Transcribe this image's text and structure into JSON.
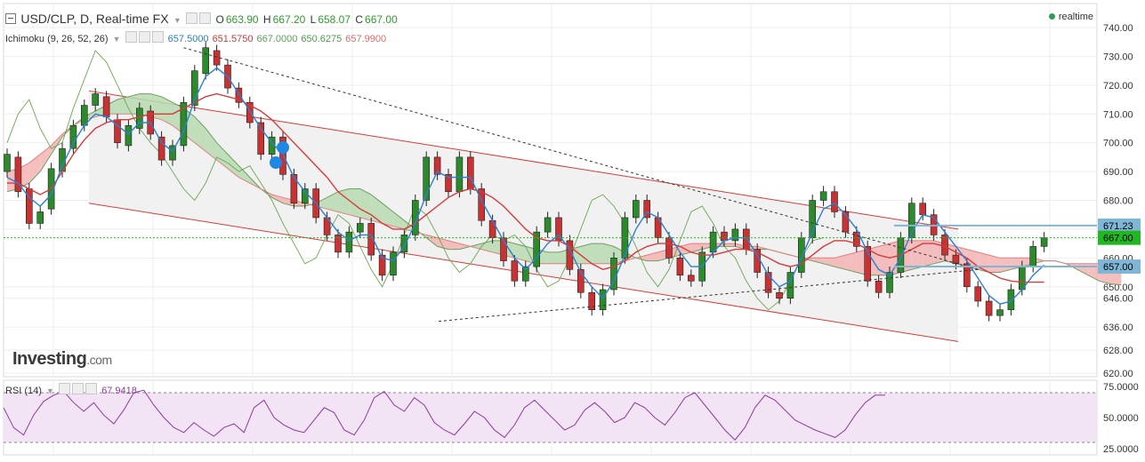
{
  "header": {
    "title": "USD/CLP, D, Real-time FX",
    "ohlc": [
      {
        "label": "O",
        "value": "663.90"
      },
      {
        "label": "H",
        "value": "667.20"
      },
      {
        "label": "L",
        "value": "658.07"
      },
      {
        "label": "C",
        "value": "667.00"
      }
    ],
    "realtime": "realtime"
  },
  "ichimoku": {
    "label": "Ichimoku (9, 26, 52, 26)",
    "values": [
      {
        "value": "657.5000",
        "color": "#2a7fd4"
      },
      {
        "value": "651.5750",
        "color": "#d63a3a"
      },
      {
        "value": "667.0000",
        "color": "#5aa05a"
      },
      {
        "value": "650.6275",
        "color": "#4f9a4f"
      },
      {
        "value": "657.9900",
        "color": "#e06a6a"
      }
    ]
  },
  "rsi": {
    "label": "RSI (14)",
    "value": "67.9418",
    "ticks": [
      "75.0000",
      "50.0000",
      "25.0000"
    ]
  },
  "logo": {
    "main": "Investing",
    "suffix": ".com"
  },
  "price_labels": [
    {
      "value": "671.23",
      "price": 671.23,
      "color": "#7fb6d6",
      "text_color": "#000000"
    },
    {
      "value": "667.00",
      "price": 667.0,
      "color": "#23b623",
      "text_color": "#000000"
    },
    {
      "value": "657.00",
      "price": 657.0,
      "color": "#7fb6d6",
      "text_color": "#000000"
    }
  ],
  "colors": {
    "up": "#2b8a2b",
    "down": "#c83232",
    "tenkan": "#2a7fd4",
    "kijun": "#d63a3a",
    "chikou": "#6aa84f",
    "cloud_bull": "#b7dbb0",
    "cloud_bear": "#f4b4b4",
    "channel": "#d63a3a",
    "rsi_line": "#8b3a9b",
    "rsi_band": "#f3e4f5",
    "trend": "#333333"
  },
  "chart_data": {
    "type": "candlestick",
    "ylim": [
      620,
      745
    ],
    "yticks": [
      "740.00",
      "730.00",
      "720.00",
      "710.00",
      "700.00",
      "690.00",
      "680.00",
      "670.00",
      "660.00",
      "650.00",
      "646.00",
      "636.00",
      "628.00",
      "620.00"
    ],
    "rsi_range": [
      20,
      80
    ],
    "rsi_levels": [
      70,
      30
    ],
    "candles": [
      [
        690,
        696
      ],
      [
        695,
        683
      ],
      [
        684,
        672
      ],
      [
        672,
        676
      ],
      [
        677,
        691
      ],
      [
        690,
        698
      ],
      [
        698,
        706
      ],
      [
        706,
        713
      ],
      [
        713,
        717
      ],
      [
        716,
        709
      ],
      [
        708,
        700
      ],
      [
        699,
        706
      ],
      [
        705,
        712
      ],
      [
        711,
        703
      ],
      [
        702,
        694
      ],
      [
        694,
        699
      ],
      [
        699,
        714
      ],
      [
        713,
        725
      ],
      [
        724,
        733
      ],
      [
        732,
        727
      ],
      [
        727,
        719
      ],
      [
        719,
        714
      ],
      [
        714,
        707
      ],
      [
        707,
        696
      ],
      [
        696,
        702
      ],
      [
        702,
        689
      ],
      [
        689,
        679
      ],
      [
        679,
        684
      ],
      [
        684,
        674
      ],
      [
        674,
        668
      ],
      [
        668,
        662
      ],
      [
        662,
        669
      ],
      [
        669,
        672
      ],
      [
        672,
        661
      ],
      [
        661,
        654
      ],
      [
        654,
        662
      ],
      [
        662,
        668
      ],
      [
        668,
        680
      ],
      [
        680,
        695
      ],
      [
        695,
        689
      ],
      [
        689,
        683
      ],
      [
        683,
        695
      ],
      [
        695,
        684
      ],
      [
        684,
        673
      ],
      [
        673,
        667
      ],
      [
        667,
        659
      ],
      [
        659,
        652
      ],
      [
        652,
        657
      ],
      [
        657,
        669
      ],
      [
        669,
        674
      ],
      [
        674,
        666
      ],
      [
        666,
        656
      ],
      [
        656,
        648
      ],
      [
        648,
        642
      ],
      [
        642,
        649
      ],
      [
        649,
        660
      ],
      [
        660,
        674
      ],
      [
        674,
        680
      ],
      [
        680,
        674
      ],
      [
        674,
        667
      ],
      [
        667,
        660
      ],
      [
        660,
        654
      ],
      [
        654,
        652
      ],
      [
        652,
        662
      ],
      [
        662,
        669
      ],
      [
        669,
        666
      ],
      [
        666,
        670
      ],
      [
        670,
        663
      ],
      [
        663,
        655
      ],
      [
        655,
        648
      ],
      [
        648,
        646
      ],
      [
        646,
        655
      ],
      [
        655,
        667
      ],
      [
        667,
        680
      ],
      [
        680,
        683
      ],
      [
        683,
        676
      ],
      [
        676,
        669
      ],
      [
        669,
        664
      ],
      [
        664,
        652
      ],
      [
        652,
        648
      ],
      [
        648,
        655
      ],
      [
        655,
        667
      ],
      [
        667,
        679
      ],
      [
        679,
        675
      ],
      [
        675,
        668
      ],
      [
        668,
        661
      ],
      [
        661,
        658
      ],
      [
        658,
        650
      ],
      [
        650,
        645
      ],
      [
        645,
        640
      ],
      [
        640,
        642
      ],
      [
        642,
        649
      ],
      [
        649,
        657
      ],
      [
        657,
        664
      ],
      [
        664,
        667
      ]
    ],
    "tenkan": [
      688,
      686,
      681,
      678,
      682,
      692,
      700,
      706,
      710,
      709,
      706,
      703,
      707,
      707,
      700,
      697,
      704,
      715,
      723,
      726,
      723,
      717,
      711,
      705,
      700,
      696,
      688,
      683,
      679,
      674,
      669,
      666,
      668,
      668,
      660,
      659,
      664,
      672,
      682,
      690,
      688,
      688,
      688,
      680,
      673,
      666,
      660,
      656,
      660,
      665,
      668,
      663,
      655,
      650,
      646,
      652,
      661,
      670,
      676,
      674,
      668,
      662,
      657,
      657,
      662,
      666,
      667,
      667,
      661,
      654,
      650,
      652,
      660,
      669,
      677,
      679,
      675,
      670,
      662,
      656,
      654,
      660,
      669,
      675,
      674,
      669,
      664,
      659,
      653,
      647,
      644,
      645,
      649,
      654,
      657.5
    ],
    "kijun": [
      686,
      686,
      684,
      682,
      684,
      690,
      696,
      701,
      705,
      707,
      708,
      708,
      709,
      710,
      710,
      710,
      712,
      714,
      716,
      717,
      716,
      715,
      713,
      711,
      708,
      704,
      700,
      696,
      692,
      688,
      683,
      680,
      677,
      675,
      672,
      670,
      670,
      672,
      675,
      678,
      681,
      683,
      684,
      683,
      681,
      678,
      674,
      670,
      667,
      666,
      666,
      664,
      661,
      658,
      656,
      657,
      659,
      662,
      664,
      665,
      665,
      664,
      662,
      661,
      661,
      662,
      663,
      663,
      662,
      660,
      658,
      657,
      658,
      661,
      664,
      666,
      666,
      665,
      663,
      661,
      660,
      661,
      663,
      665,
      665,
      664,
      662,
      660,
      657,
      655,
      653,
      652,
      651.6,
      651.6,
      651.6
    ],
    "span_a": [
      683,
      684,
      686,
      690,
      696,
      702,
      706,
      709,
      711,
      713,
      715,
      716,
      717,
      717,
      716,
      714,
      712,
      709,
      705,
      700,
      696,
      692,
      688,
      684,
      681,
      679,
      678,
      678,
      679,
      681,
      683,
      684,
      684,
      682,
      679,
      676,
      673,
      670,
      667,
      664,
      663,
      663,
      664,
      665,
      666,
      666,
      665,
      664,
      663,
      662,
      662,
      663,
      664,
      665,
      665,
      664,
      662,
      660,
      659,
      659,
      660,
      661,
      662,
      663,
      664,
      664,
      664,
      663,
      663,
      663,
      662,
      661,
      660,
      659,
      658,
      657,
      656,
      655,
      654,
      654,
      654,
      655,
      656,
      657,
      658,
      659,
      658,
      657,
      656,
      655,
      655,
      656,
      657,
      658,
      659,
      659,
      658,
      656,
      654,
      652,
      651,
      650.6
    ],
    "span_b": [
      690,
      691,
      693,
      696,
      699,
      703,
      706,
      708,
      709,
      710,
      710,
      710,
      710,
      709,
      708,
      706,
      703,
      700,
      697,
      694,
      691,
      688,
      686,
      684,
      682,
      681,
      680,
      679,
      678,
      677,
      676,
      675,
      674,
      673,
      672,
      671,
      670,
      669,
      668,
      667,
      666,
      665,
      664,
      663,
      662,
      661,
      660,
      659,
      658,
      658,
      658,
      658,
      658,
      658,
      658,
      658,
      659,
      660,
      661,
      662,
      663,
      664,
      665,
      665,
      665,
      665,
      665,
      664,
      664,
      663,
      662,
      661,
      660,
      660,
      660,
      660,
      661,
      662,
      663,
      664,
      665,
      666,
      666,
      666,
      666,
      665,
      664,
      663,
      662,
      661,
      660,
      660,
      660,
      660,
      659,
      659,
      658,
      658,
      658,
      658,
      658,
      658
    ],
    "chikou": [
      700,
      710,
      715,
      705,
      698,
      700,
      712,
      722,
      732,
      728,
      720,
      712,
      705,
      700,
      696,
      690,
      684,
      680,
      686,
      695,
      693,
      690,
      692,
      686,
      680,
      672,
      665,
      658,
      660,
      668,
      675,
      672,
      664,
      656,
      650,
      658,
      668,
      678,
      675,
      668,
      660,
      655,
      658,
      664,
      668,
      666,
      668,
      664,
      656,
      650,
      652,
      660,
      670,
      680,
      682,
      678,
      672,
      664,
      655,
      650,
      656,
      666,
      676,
      678,
      672,
      664,
      660,
      652,
      646,
      642,
      645,
      652,
      660,
      666,
      667
    ],
    "rsi": [
      58,
      42,
      36,
      52,
      63,
      68,
      71,
      62,
      55,
      62,
      52,
      45,
      56,
      70,
      72,
      60,
      50,
      42,
      38,
      46,
      40,
      35,
      42,
      45,
      38,
      58,
      64,
      50,
      44,
      40,
      38,
      48,
      58,
      54,
      40,
      36,
      48,
      66,
      71,
      60,
      55,
      66,
      60,
      46,
      40,
      36,
      45,
      55,
      50,
      40,
      34,
      44,
      58,
      64,
      56,
      48,
      40,
      44,
      56,
      62,
      55,
      46,
      50,
      62,
      58,
      50,
      44,
      54,
      66,
      70,
      60,
      50,
      40,
      32,
      42,
      58,
      68,
      64,
      56,
      48,
      44,
      40,
      37,
      34,
      40,
      52,
      62,
      68,
      68
    ],
    "channel_upper": [
      [
        0,
        718
      ],
      [
        64,
        670
      ]
    ],
    "channel_lower": [
      [
        0,
        679
      ],
      [
        64,
        631
      ]
    ],
    "trend_down": [
      [
        16,
        733
      ],
      [
        71,
        656
      ]
    ],
    "trend_up": [
      [
        39,
        638
      ],
      [
        71,
        656
      ]
    ]
  }
}
